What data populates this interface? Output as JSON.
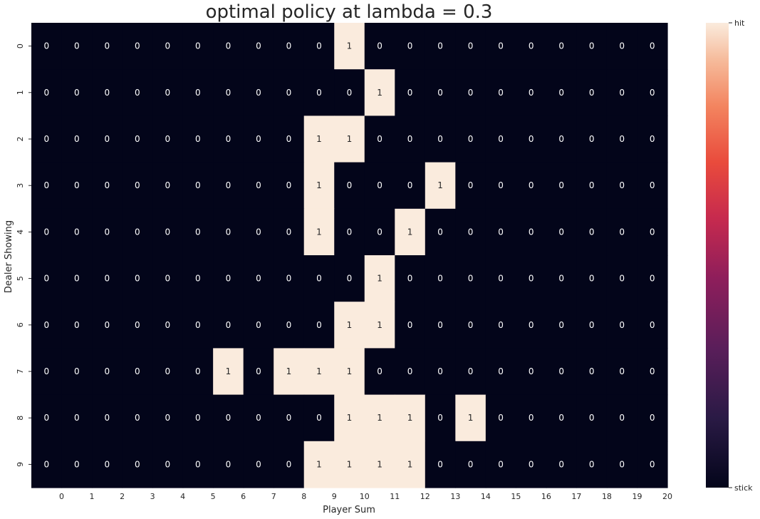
{
  "chart_data": {
    "type": "heatmap",
    "title": "optimal policy at lambda = 0.3",
    "xlabel": "Player Sum",
    "ylabel": "Dealer Showing",
    "x_ticks": [
      "0",
      "1",
      "2",
      "3",
      "4",
      "5",
      "6",
      "7",
      "8",
      "9",
      "10",
      "11",
      "12",
      "13",
      "14",
      "15",
      "16",
      "17",
      "18",
      "19",
      "20"
    ],
    "y_ticks": [
      "0",
      "1",
      "2",
      "3",
      "4",
      "5",
      "6",
      "7",
      "8",
      "9"
    ],
    "colorbar_ticks": {
      "high": "hit",
      "low": "stick"
    },
    "colorbar_range": [
      0,
      1
    ],
    "annotated": true,
    "grid": false,
    "values": [
      [
        0,
        0,
        0,
        0,
        0,
        0,
        0,
        0,
        0,
        0,
        1,
        0,
        0,
        0,
        0,
        0,
        0,
        0,
        0,
        0,
        0
      ],
      [
        0,
        0,
        0,
        0,
        0,
        0,
        0,
        0,
        0,
        0,
        0,
        1,
        0,
        0,
        0,
        0,
        0,
        0,
        0,
        0,
        0
      ],
      [
        0,
        0,
        0,
        0,
        0,
        0,
        0,
        0,
        0,
        1,
        1,
        0,
        0,
        0,
        0,
        0,
        0,
        0,
        0,
        0,
        0
      ],
      [
        0,
        0,
        0,
        0,
        0,
        0,
        0,
        0,
        0,
        1,
        0,
        0,
        0,
        1,
        0,
        0,
        0,
        0,
        0,
        0,
        0
      ],
      [
        0,
        0,
        0,
        0,
        0,
        0,
        0,
        0,
        0,
        1,
        0,
        0,
        1,
        0,
        0,
        0,
        0,
        0,
        0,
        0,
        0
      ],
      [
        0,
        0,
        0,
        0,
        0,
        0,
        0,
        0,
        0,
        0,
        0,
        1,
        0,
        0,
        0,
        0,
        0,
        0,
        0,
        0,
        0
      ],
      [
        0,
        0,
        0,
        0,
        0,
        0,
        0,
        0,
        0,
        0,
        1,
        1,
        0,
        0,
        0,
        0,
        0,
        0,
        0,
        0,
        0
      ],
      [
        0,
        0,
        0,
        0,
        0,
        0,
        1,
        0,
        1,
        1,
        1,
        0,
        0,
        0,
        0,
        0,
        0,
        0,
        0,
        0,
        0
      ],
      [
        0,
        0,
        0,
        0,
        0,
        0,
        0,
        0,
        0,
        0,
        1,
        1,
        1,
        0,
        1,
        0,
        0,
        0,
        0,
        0,
        0
      ],
      [
        0,
        0,
        0,
        0,
        0,
        0,
        0,
        0,
        0,
        1,
        1,
        1,
        1,
        0,
        0,
        0,
        0,
        0,
        0,
        0,
        0
      ]
    ],
    "colors": {
      "low": "#03051a",
      "high": "#faebdd",
      "text_on_low": "#ffffff",
      "text_on_high": "#262626",
      "axis_text": "#262626"
    }
  }
}
